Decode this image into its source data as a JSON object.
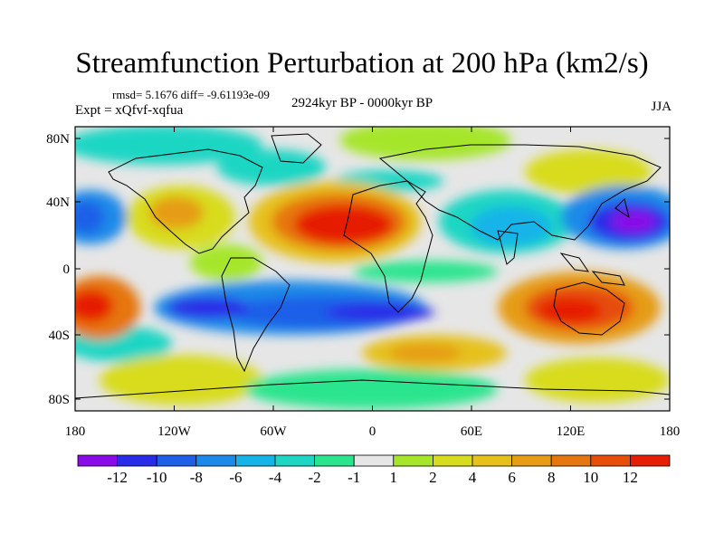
{
  "title": "Streamfunction Perturbation at 200 hPa (km2/s)",
  "stats": "rmsd= 5.1676 diff= -9.61193e-09",
  "experiment": "Expt = xQfvf-xqfua",
  "period": "2924kyr BP - 0000kyr BP",
  "season": "JJA",
  "lon_ticks": [
    "180",
    "120W",
    "60W",
    "0",
    "60E",
    "120E",
    "180"
  ],
  "lat_ticks": [
    "80N",
    "40N",
    "0",
    "40S",
    "80S"
  ],
  "colorbar": {
    "colors": [
      "#8a0ae8",
      "#2a2be8",
      "#1f5fe8",
      "#1b8ae8",
      "#14b4e8",
      "#1ed6c4",
      "#2be58e",
      "#e6e6e6",
      "#a6e62a",
      "#d8dc1e",
      "#e6c11a",
      "#e69c14",
      "#e6760f",
      "#e64e0a",
      "#e61e05"
    ],
    "labels": [
      "-12",
      "-10",
      "-8",
      "-6",
      "-4",
      "-2",
      "-1",
      "1",
      "2",
      "4",
      "6",
      "8",
      "10",
      "12"
    ]
  }
}
